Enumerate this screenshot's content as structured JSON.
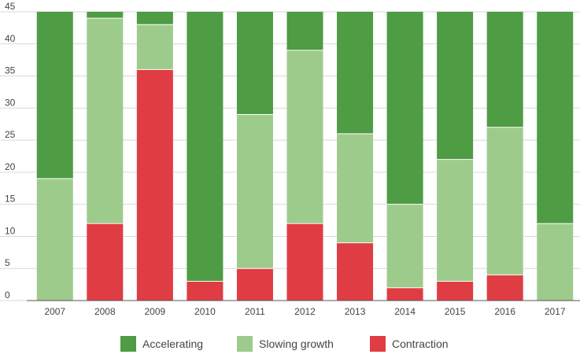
{
  "chart_data": {
    "type": "bar",
    "stacked": true,
    "title": "",
    "xlabel": "",
    "ylabel": "",
    "ylim": [
      0,
      45
    ],
    "yticks": [
      0,
      5,
      10,
      15,
      20,
      25,
      30,
      35,
      40,
      45
    ],
    "grid": true,
    "legend_position": "bottom",
    "categories": [
      "2007",
      "2008",
      "2009",
      "2010",
      "2011",
      "2012",
      "2013",
      "2014",
      "2015",
      "2016",
      "2017"
    ],
    "series": [
      {
        "name": "Contraction",
        "color": "#e03c44",
        "values": [
          0,
          12,
          36,
          3,
          5,
          12,
          9,
          2,
          3,
          4,
          0
        ]
      },
      {
        "name": "Slowing growth",
        "color": "#9dcb8c",
        "values": [
          19,
          32,
          7,
          0,
          24,
          27,
          17,
          13,
          19,
          23,
          12
        ]
      },
      {
        "name": "Accelerating",
        "color": "#4e9c44",
        "values": [
          26,
          1,
          2,
          42,
          16,
          6,
          19,
          30,
          23,
          18,
          33
        ]
      }
    ],
    "legend_order": [
      "Accelerating",
      "Slowing growth",
      "Contraction"
    ]
  }
}
